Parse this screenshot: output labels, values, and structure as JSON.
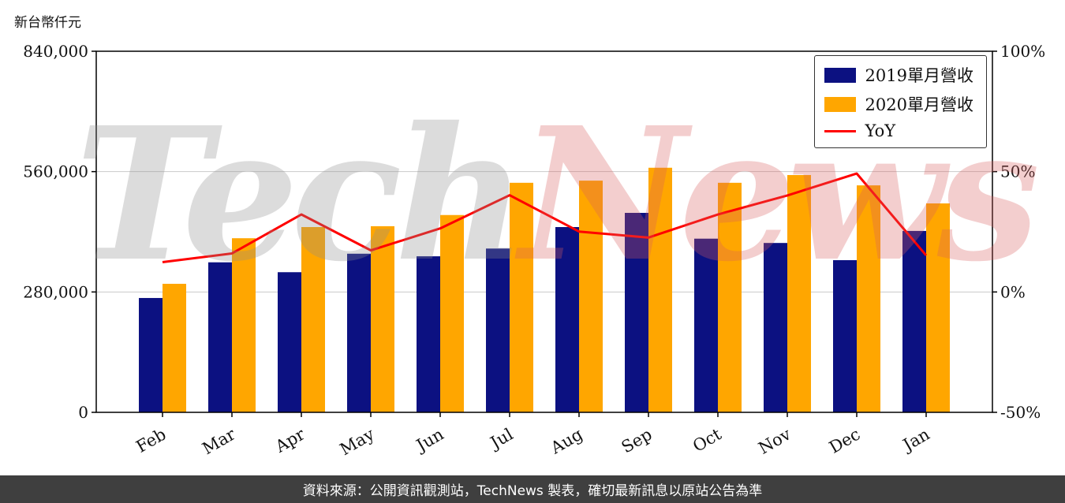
{
  "chart": {
    "y_axis_title": "新台幣仟元",
    "watermark_part1": "Tech",
    "watermark_part2": "News",
    "footer": "資料來源：公開資訊觀測站，TechNews 製表，確切最新訊息以原站公告為準"
  },
  "chart_data": {
    "type": "bar",
    "title": "",
    "categories": [
      "Feb",
      "Mar",
      "Apr",
      "May",
      "Jun",
      "Jul",
      "Aug",
      "Sep",
      "Oct",
      "Nov",
      "Dec",
      "Jan"
    ],
    "series": [
      {
        "name": "2019單月營收",
        "kind": "bar",
        "axis": "left",
        "color": "#0c1181",
        "values": [
          266000,
          349000,
          326000,
          369000,
          363000,
          381000,
          431000,
          464000,
          404000,
          394000,
          354000,
          422000
        ]
      },
      {
        "name": "2020單月營收",
        "kind": "bar",
        "axis": "left",
        "color": "#ffa600",
        "values": [
          299000,
          405000,
          431000,
          433000,
          459000,
          534000,
          539000,
          569000,
          534000,
          552000,
          528000,
          486000
        ]
      },
      {
        "name": "YoY",
        "kind": "line",
        "axis": "right",
        "color": "#ff0000",
        "values": [
          12.4,
          16.0,
          32.2,
          17.3,
          26.4,
          40.2,
          25.1,
          22.6,
          32.2,
          40.1,
          49.2,
          15.2
        ]
      }
    ],
    "left_axis": {
      "min": 0,
      "max": 840000,
      "ticks": [
        0,
        280000,
        560000,
        840000
      ],
      "tick_labels": [
        "0",
        "280,000",
        "560,000",
        "840,000"
      ]
    },
    "right_axis": {
      "min": -50,
      "max": 100,
      "ticks": [
        -50,
        0,
        50,
        100
      ],
      "tick_labels": [
        "-50%",
        "0%",
        "50%",
        "100%"
      ]
    },
    "grid": "horizontal",
    "legend_position": "top-right"
  }
}
